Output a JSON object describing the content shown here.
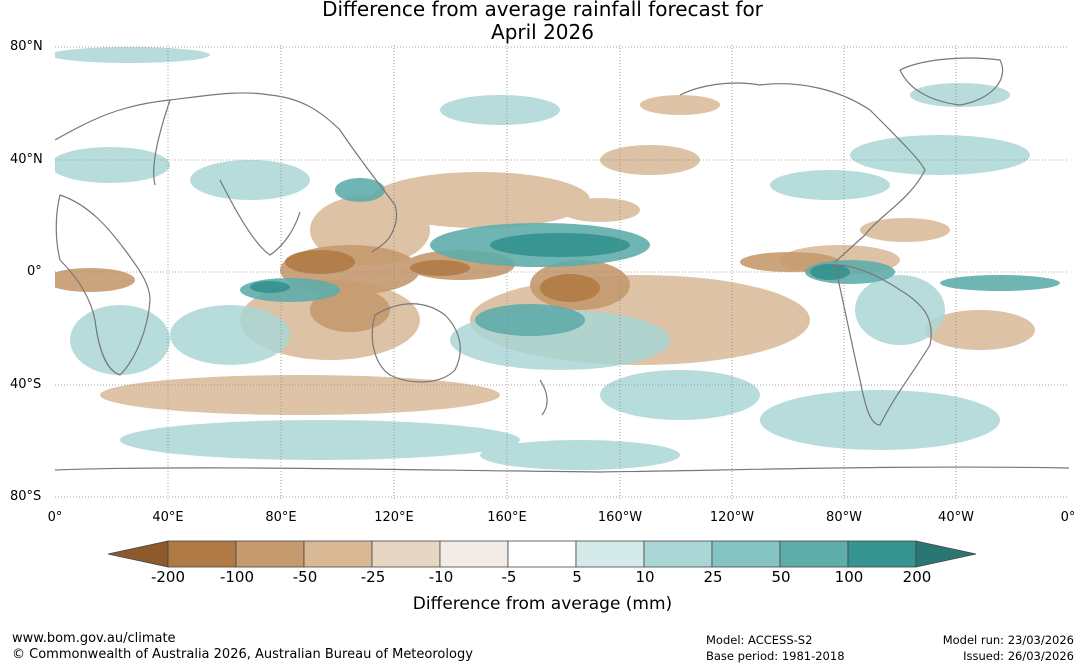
{
  "title": {
    "line1": "Difference from average rainfall forecast for",
    "line2": "April 2026"
  },
  "axes": {
    "lat_labels": [
      "80°N",
      "40°N",
      "0°",
      "40°S",
      "80°S"
    ],
    "lon_labels": [
      "0°",
      "40°E",
      "80°E",
      "120°E",
      "160°E",
      "160°W",
      "120°W",
      "80°W",
      "40°W",
      "0°"
    ]
  },
  "colorbar": {
    "title": "Difference from average (mm)",
    "ticks": [
      "-200",
      "-100",
      "-50",
      "-25",
      "-10",
      "-5",
      "5",
      "10",
      "25",
      "50",
      "100",
      "200"
    ],
    "colors": [
      "#8d5a2b",
      "#b07a44",
      "#c59a6e",
      "#d9b896",
      "#e8d6c4",
      "#f2ebe6",
      "#ffffff",
      "#d4ebea",
      "#aad6d5",
      "#86c4c3",
      "#5fadab",
      "#35948f",
      "#2a7673"
    ]
  },
  "footer": {
    "website": "www.bom.gov.au/climate",
    "copyright": "© Commonwealth of Australia 2026, Australian Bureau of Meteorology",
    "model": "Model: ACCESS-S2",
    "base_period": "Base period: 1981-2018",
    "model_run": "Model run: 23/03/2026",
    "issued": "Issued: 26/03/2026"
  }
}
